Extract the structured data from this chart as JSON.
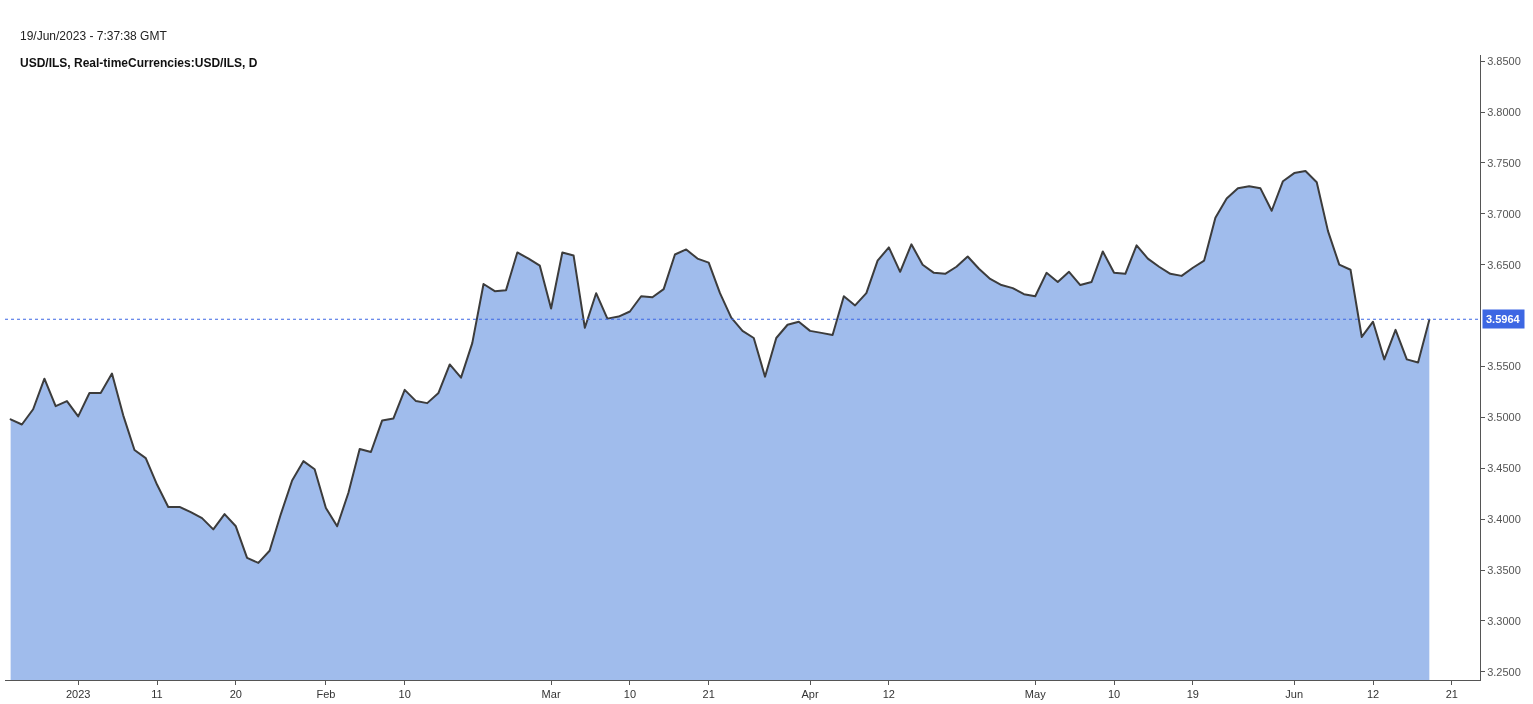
{
  "chart_data": {
    "type": "area",
    "title": "USD/ILS, Real-timeCurrencies:USD/ILS, D",
    "annotations": [
      "19/Jun/2023 - 7:37:38 GMT"
    ],
    "categories": [
      null,
      null,
      null,
      null,
      null,
      null,
      "2023",
      null,
      null,
      null,
      null,
      null,
      null,
      "11",
      null,
      null,
      null,
      null,
      null,
      null,
      "20",
      null,
      null,
      null,
      null,
      null,
      null,
      null,
      "Feb",
      null,
      null,
      null,
      null,
      null,
      null,
      "10",
      null,
      null,
      null,
      null,
      null,
      null,
      null,
      null,
      null,
      null,
      null,
      null,
      "Mar",
      null,
      null,
      null,
      null,
      null,
      null,
      "10",
      null,
      null,
      null,
      null,
      null,
      null,
      "21",
      null,
      null,
      null,
      null,
      null,
      null,
      null,
      null,
      "Apr",
      null,
      null,
      null,
      null,
      null,
      null,
      "12",
      null,
      null,
      null,
      null,
      null,
      null,
      null,
      null,
      null,
      null,
      null,
      null,
      "May",
      null,
      null,
      null,
      null,
      null,
      null,
      "10",
      null,
      null,
      null,
      null,
      null,
      null,
      "19",
      null,
      null,
      null,
      null,
      null,
      null,
      null,
      null,
      "Jun",
      null,
      null,
      null,
      null,
      null,
      null,
      "12",
      null,
      null,
      null,
      null,
      null,
      null,
      "21",
      null,
      null
    ],
    "values": [
      3.498,
      3.493,
      3.508,
      3.538,
      3.511,
      3.516,
      3.501,
      3.524,
      3.524,
      3.543,
      3.502,
      3.468,
      3.46,
      3.434,
      3.412,
      3.412,
      3.407,
      3.401,
      3.39,
      3.405,
      3.393,
      3.362,
      3.357,
      3.369,
      3.405,
      3.438,
      3.457,
      3.449,
      3.411,
      3.393,
      3.426,
      3.469,
      3.466,
      3.497,
      3.499,
      3.527,
      3.516,
      3.514,
      3.524,
      3.552,
      3.539,
      3.573,
      3.631,
      3.624,
      3.625,
      3.662,
      3.656,
      3.649,
      3.607,
      3.662,
      3.659,
      3.588,
      3.622,
      3.597,
      3.599,
      3.604,
      3.619,
      3.618,
      3.626,
      3.66,
      3.665,
      3.656,
      3.652,
      3.622,
      3.598,
      3.585,
      3.578,
      3.54,
      3.578,
      3.591,
      3.594,
      3.585,
      3.583,
      3.581,
      3.619,
      3.61,
      3.622,
      3.654,
      3.667,
      3.643,
      3.67,
      3.65,
      3.642,
      3.641,
      3.648,
      3.658,
      3.646,
      3.636,
      3.63,
      3.627,
      3.621,
      3.619,
      3.642,
      3.633,
      3.643,
      3.63,
      3.633,
      3.663,
      3.642,
      3.641,
      3.669,
      3.656,
      3.648,
      3.641,
      3.639,
      3.647,
      3.654,
      3.696,
      3.715,
      3.725,
      3.727,
      3.725,
      3.703,
      3.732,
      3.74,
      3.742,
      3.731,
      3.683,
      3.65,
      3.645,
      3.579,
      3.594,
      3.557,
      3.586,
      3.557,
      3.554,
      3.596,
      null,
      null,
      null,
      null
    ],
    "color": "#a0bcec",
    "ylim": [
      3.242,
      3.856
    ],
    "yticks": [
      {
        "value": 3.25,
        "label": "3.2500"
      },
      {
        "value": 3.3,
        "label": "3.3000"
      },
      {
        "value": 3.35,
        "label": "3.3500"
      },
      {
        "value": 3.4,
        "label": "3.4000"
      },
      {
        "value": 3.45,
        "label": "3.4500"
      },
      {
        "value": 3.5,
        "label": "3.5000"
      },
      {
        "value": 3.55,
        "label": "3.5500"
      },
      {
        "value": 3.65,
        "label": "3.6500"
      },
      {
        "value": 3.7,
        "label": "3.7000"
      },
      {
        "value": 3.75,
        "label": "3.7500"
      },
      {
        "value": 3.8,
        "label": "3.8000"
      },
      {
        "value": 3.85,
        "label": "3.8500"
      }
    ],
    "ref_lines": [
      {
        "axis": "y",
        "value": 3.5964,
        "label": "3.5964",
        "color": "#3d67e3",
        "line_style": "dotted"
      }
    ]
  }
}
